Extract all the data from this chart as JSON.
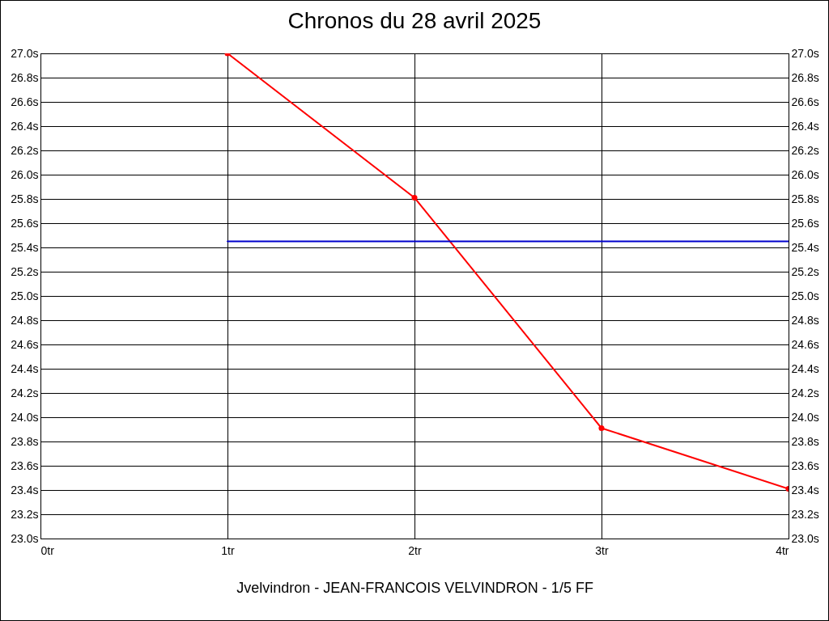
{
  "chart_data": {
    "type": "line",
    "title": "Chronos du 28 avril 2025",
    "xlabel": "Jvelvindron - JEAN-FRANCOIS VELVINDRON - 1/5 FF",
    "x": [
      1,
      2,
      3,
      4
    ],
    "series": [
      {
        "color": "#ff0000",
        "values": [
          27.0,
          25.81,
          23.91,
          23.41
        ],
        "marker": "circle"
      },
      {
        "color": "#0000cc",
        "x": [
          1,
          4
        ],
        "values": [
          25.45,
          25.45
        ],
        "marker": "none"
      }
    ],
    "xlim": [
      0,
      4
    ],
    "xticks": [
      {
        "value": 0,
        "label": "0tr"
      },
      {
        "value": 1,
        "label": "1tr"
      },
      {
        "value": 2,
        "label": "2tr"
      },
      {
        "value": 3,
        "label": "3tr"
      },
      {
        "value": 4,
        "label": "4tr"
      }
    ],
    "ylim": [
      23.0,
      27.0
    ],
    "yticks": [
      {
        "value": 23.0,
        "label": "23.0s"
      },
      {
        "value": 23.2,
        "label": "23.2s"
      },
      {
        "value": 23.4,
        "label": "23.4s"
      },
      {
        "value": 23.6,
        "label": "23.6s"
      },
      {
        "value": 23.8,
        "label": "23.8s"
      },
      {
        "value": 24.0,
        "label": "24.0s"
      },
      {
        "value": 24.2,
        "label": "24.2s"
      },
      {
        "value": 24.4,
        "label": "24.4s"
      },
      {
        "value": 24.6,
        "label": "24.6s"
      },
      {
        "value": 24.8,
        "label": "24.8s"
      },
      {
        "value": 25.0,
        "label": "25.0s"
      },
      {
        "value": 25.2,
        "label": "25.2s"
      },
      {
        "value": 25.4,
        "label": "25.4s"
      },
      {
        "value": 25.6,
        "label": "25.6s"
      },
      {
        "value": 25.8,
        "label": "25.8s"
      },
      {
        "value": 26.0,
        "label": "26.0s"
      },
      {
        "value": 26.2,
        "label": "26.2s"
      },
      {
        "value": 26.4,
        "label": "26.4s"
      },
      {
        "value": 26.6,
        "label": "26.6s"
      },
      {
        "value": 26.8,
        "label": "26.8s"
      },
      {
        "value": 27.0,
        "label": "27.0s"
      }
    ],
    "y2lim": [
      23.0,
      27.0
    ],
    "y2ticks": [
      {
        "value": 23.0,
        "label": "23.0s"
      },
      {
        "value": 23.2,
        "label": "23.2s"
      },
      {
        "value": 23.4,
        "label": "23.4s"
      },
      {
        "value": 23.6,
        "label": "23.6s"
      },
      {
        "value": 23.8,
        "label": "23.8s"
      },
      {
        "value": 24.0,
        "label": "24.0s"
      },
      {
        "value": 24.2,
        "label": "24.2s"
      },
      {
        "value": 24.4,
        "label": "24.4s"
      },
      {
        "value": 24.6,
        "label": "24.6s"
      },
      {
        "value": 24.8,
        "label": "24.8s"
      },
      {
        "value": 25.0,
        "label": "25.0s"
      },
      {
        "value": 25.2,
        "label": "25.2s"
      },
      {
        "value": 25.4,
        "label": "25.4s"
      },
      {
        "value": 25.6,
        "label": "25.6s"
      },
      {
        "value": 25.8,
        "label": "25.8s"
      },
      {
        "value": 26.0,
        "label": "26.0s"
      },
      {
        "value": 26.2,
        "label": "26.2s"
      },
      {
        "value": 26.4,
        "label": "26.4s"
      },
      {
        "value": 26.6,
        "label": "26.6s"
      },
      {
        "value": 26.8,
        "label": "26.8s"
      },
      {
        "value": 27.0,
        "label": "27.0s"
      }
    ],
    "grid": true
  }
}
